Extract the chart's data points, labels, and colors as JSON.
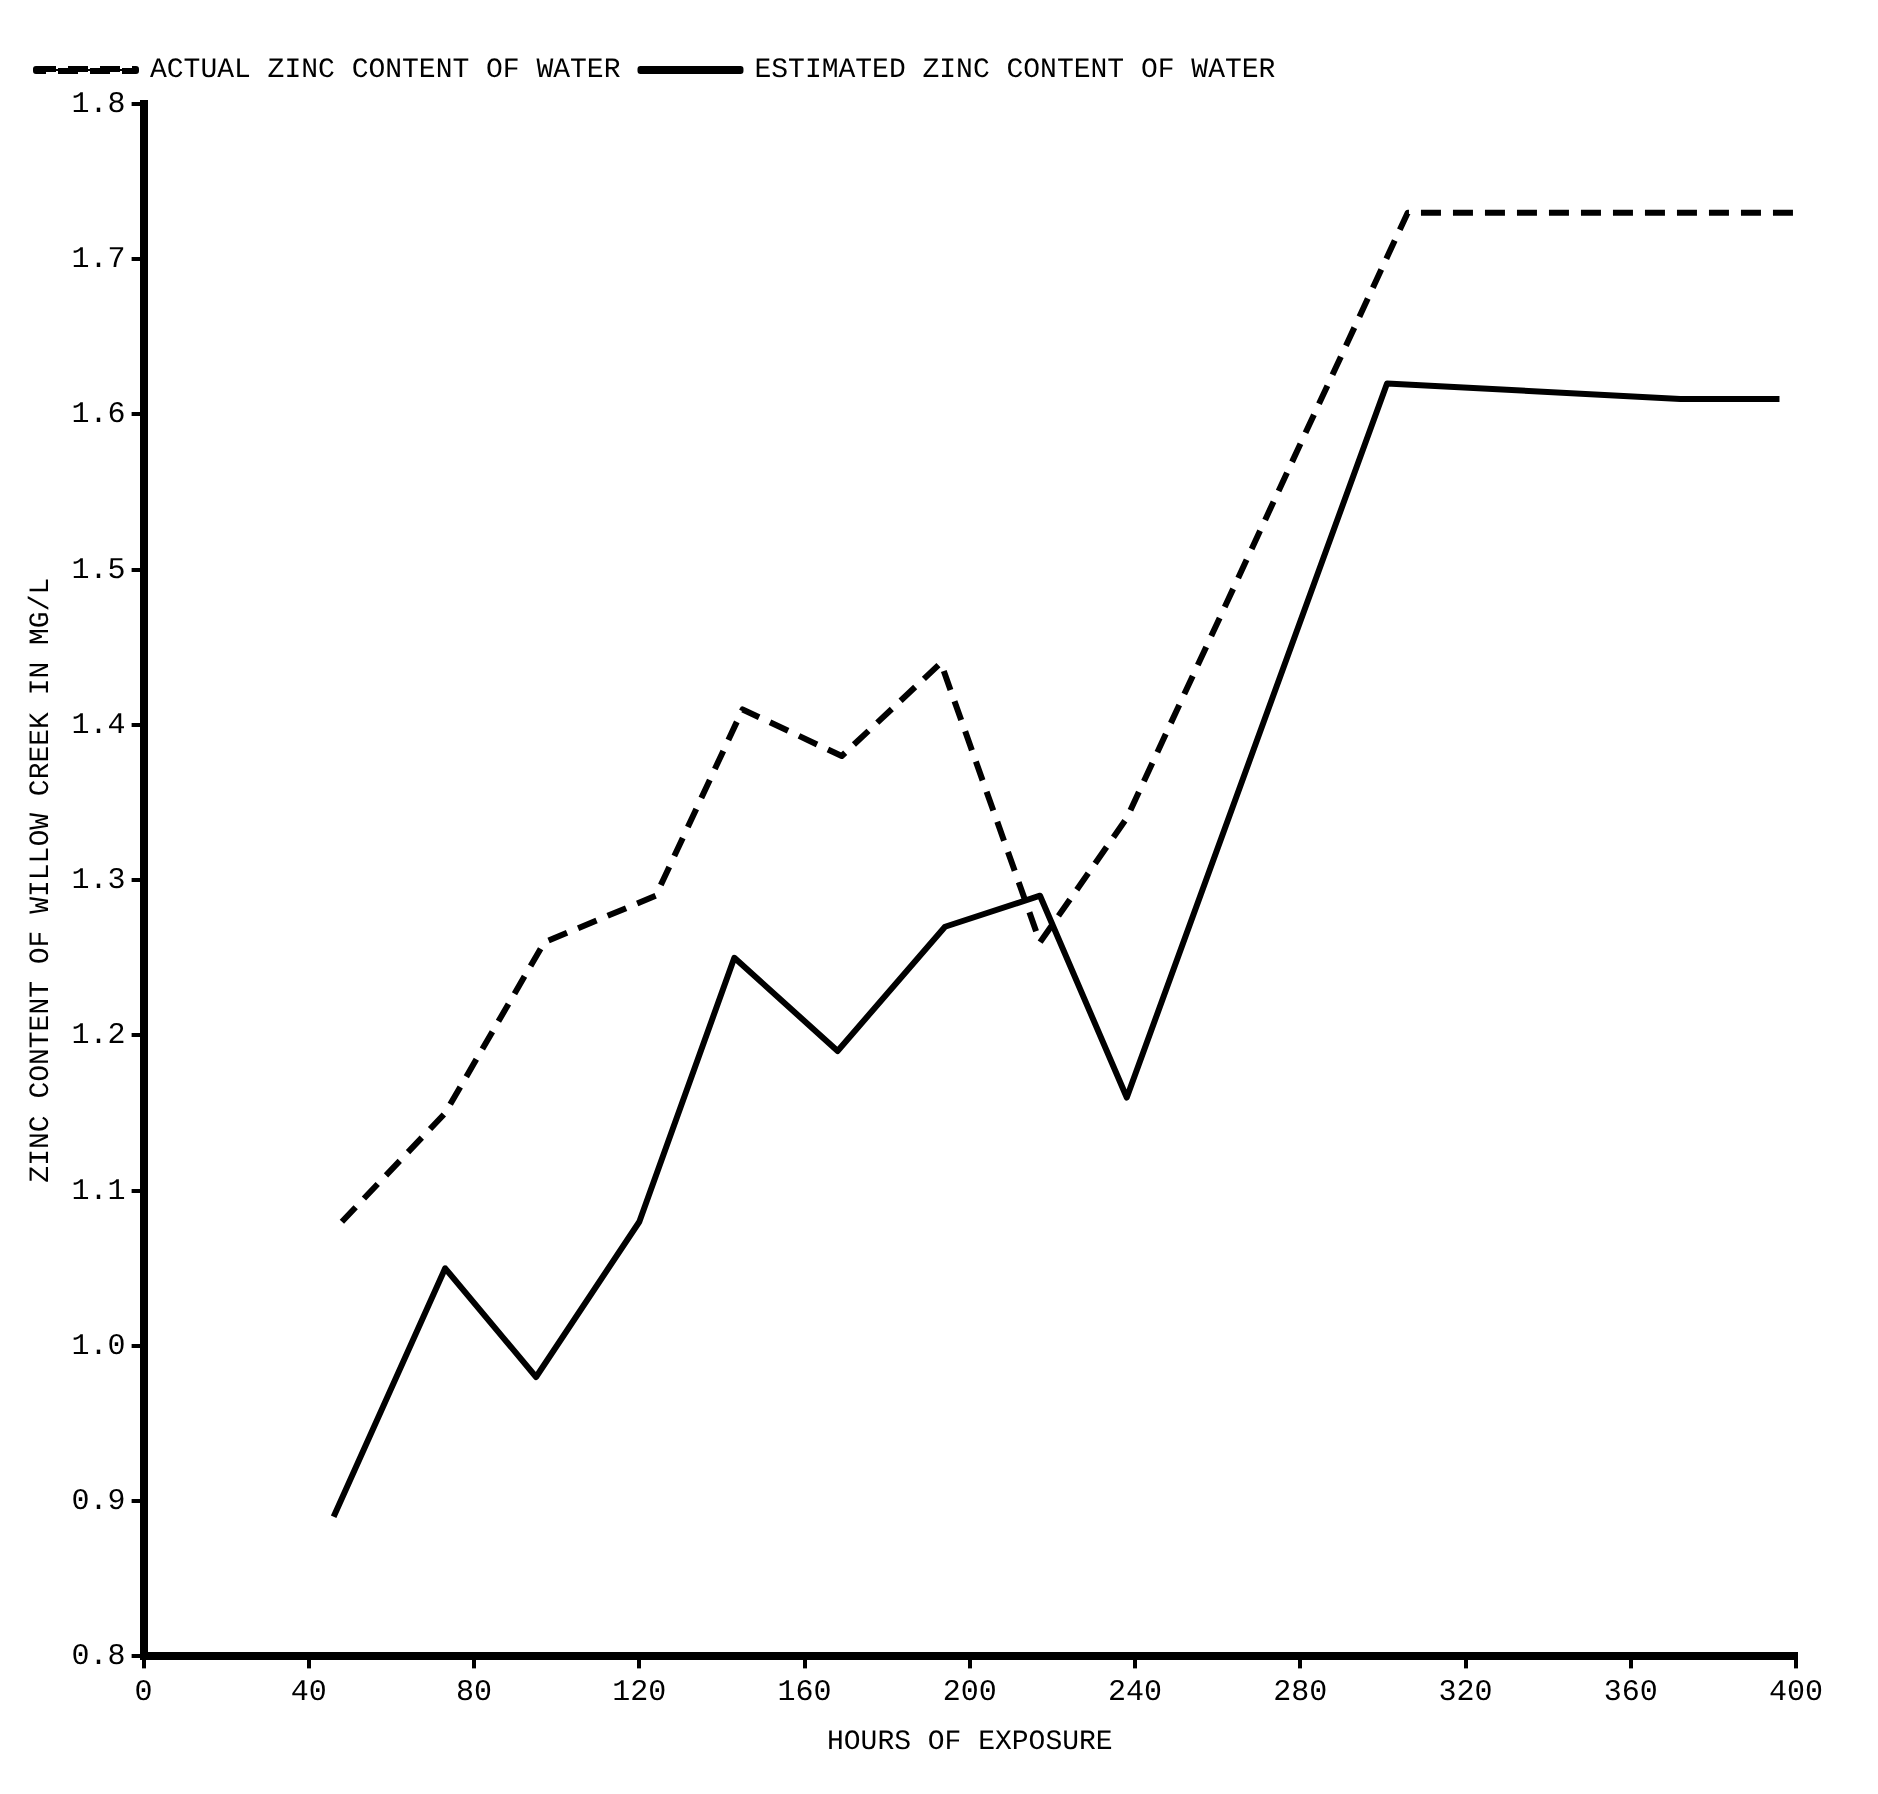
{
  "chart_data": {
    "type": "line",
    "xlabel": "HOURS OF EXPOSURE",
    "ylabel": "ZINC CONTENT OF WILLOW CREEK IN MG/L",
    "xlim": [
      0,
      400
    ],
    "xticks": [
      0,
      40,
      80,
      120,
      160,
      200,
      240,
      280,
      320,
      360,
      400
    ],
    "ylim": [
      0.8,
      1.8
    ],
    "yticks": [
      0.8,
      0.9,
      {
        "value": 1,
        "label": "1.0"
      },
      1.1,
      1.2,
      1.3,
      1.4,
      1.5,
      1.6,
      1.7,
      1.8
    ],
    "grid": false,
    "legend": "top left",
    "marker": "none",
    "series": [
      {
        "name": "ACTUAL ZINC CONTENT OF WATER",
        "color": "#000000",
        "line_style": "dashed",
        "x": [
          48,
          73,
          97,
          124,
          145,
          169,
          193,
          217,
          238,
          306,
          400
        ],
        "values": [
          1.08,
          1.15,
          1.26,
          1.29,
          1.41,
          1.38,
          1.44,
          1.26,
          1.34,
          1.73,
          1.73
        ]
      },
      {
        "name": "ESTIMATED ZINC CONTENT OF WATER",
        "color": "#000000",
        "line_style": "solid",
        "x": [
          46,
          73,
          95,
          120,
          143,
          168,
          194,
          217,
          238,
          301,
          372,
          396
        ],
        "values": [
          0.89,
          1.05,
          0.98,
          1.08,
          1.25,
          1.19,
          1.27,
          1.29,
          1.16,
          1.62,
          1.61,
          1.61
        ]
      }
    ]
  }
}
